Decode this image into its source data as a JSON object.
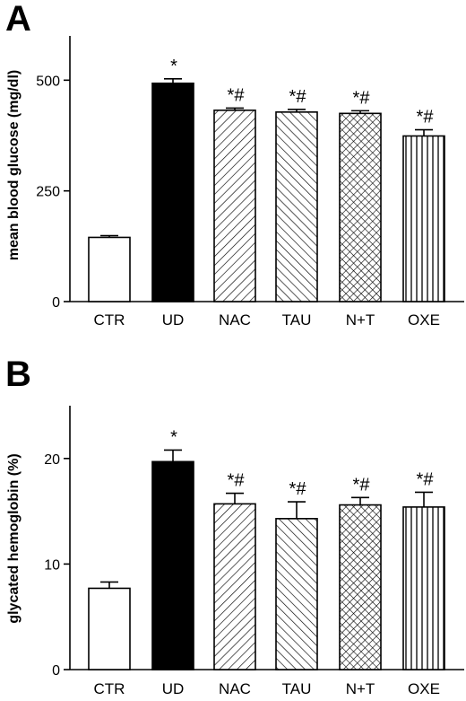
{
  "chart_data": [
    {
      "type": "bar",
      "panel": "A",
      "ylabel": "mean blood glucose (mg/dl)",
      "ylim": [
        0,
        600
      ],
      "yticks": [
        0,
        250,
        500
      ],
      "categories": [
        "CTR",
        "UD",
        "NAC",
        "TAU",
        "N+T",
        "OXE"
      ],
      "values": [
        145,
        493,
        432,
        428,
        425,
        374
      ],
      "errors": [
        4,
        10,
        5,
        6,
        6,
        14
      ],
      "annotations": [
        "",
        "*",
        "*#",
        "*#",
        "*#",
        "*#"
      ],
      "fills": [
        "white",
        "black",
        "diag-right",
        "diag-left",
        "crosshatch",
        "vertical"
      ]
    },
    {
      "type": "bar",
      "panel": "B",
      "ylabel": "glycated hemoglobin (%)",
      "ylim": [
        0,
        25
      ],
      "yticks": [
        0,
        10,
        20
      ],
      "categories": [
        "CTR",
        "UD",
        "NAC",
        "TAU",
        "N+T",
        "OXE"
      ],
      "values": [
        7.7,
        19.7,
        15.7,
        14.3,
        15.6,
        15.4
      ],
      "errors": [
        0.6,
        1.1,
        1.0,
        1.6,
        0.7,
        1.4
      ],
      "annotations": [
        "",
        "*",
        "*#",
        "*#",
        "*#",
        "*#"
      ],
      "fills": [
        "white",
        "black",
        "diag-right",
        "diag-left",
        "crosshatch",
        "vertical"
      ]
    }
  ]
}
